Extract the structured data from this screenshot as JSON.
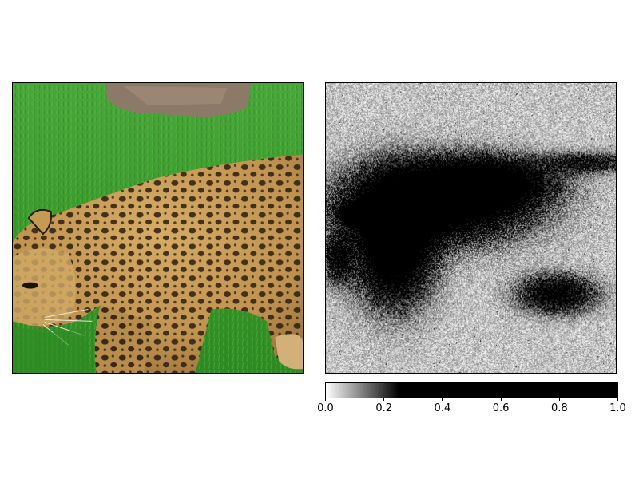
{
  "figure": {
    "left_panel": {
      "content": "leopard photograph",
      "icon": "leopard-photo"
    },
    "right_panel": {
      "content": "grayscale saliency heatmap",
      "icon": "saliency-map"
    }
  },
  "colorbar": {
    "colormap": [
      "#ffffff",
      "#000000"
    ],
    "range": [
      0.0,
      1.0
    ],
    "saturation_value": 0.25,
    "ticks": [
      "0.0",
      "0.2",
      "0.4",
      "0.6",
      "0.8",
      "1.0"
    ]
  },
  "colors": {
    "grass": "#3f9a2e",
    "rock": "#8c7a68",
    "leopard_fur": "#c59a55",
    "spot": "#2b1d12"
  }
}
